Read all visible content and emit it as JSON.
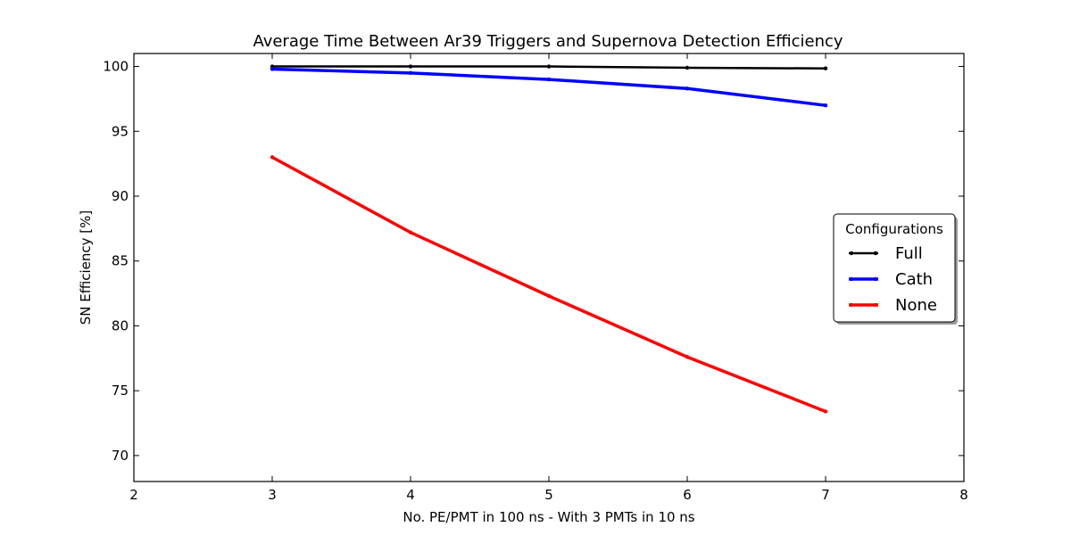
{
  "chart_data": {
    "type": "line",
    "title": "Average Time Between Ar39 Triggers and Supernova Detection Efficiency",
    "xlabel": "No. PE/PMT in 100 ns - With 3 PMTs in 10 ns",
    "ylabel": "SN Efficiency [%]",
    "xlim": [
      2,
      8
    ],
    "ylim": [
      68,
      101
    ],
    "xticks": [
      2,
      3,
      4,
      5,
      6,
      7,
      8
    ],
    "yticks": [
      70,
      75,
      80,
      85,
      90,
      95,
      100
    ],
    "grid": false,
    "legend": {
      "title": "Configurations",
      "placement": "center-right"
    },
    "x": [
      3,
      4,
      5,
      6,
      7
    ],
    "series": [
      {
        "name": "Full",
        "color": "#000000",
        "values": [
          100.0,
          100.0,
          100.0,
          99.9,
          99.85
        ]
      },
      {
        "name": "Cath",
        "color": "#0000ff",
        "values": [
          99.8,
          99.5,
          99.0,
          98.3,
          97.0
        ]
      },
      {
        "name": "None",
        "color": "#ff0000",
        "values": [
          93.0,
          87.2,
          82.3,
          77.6,
          73.4
        ]
      }
    ]
  }
}
